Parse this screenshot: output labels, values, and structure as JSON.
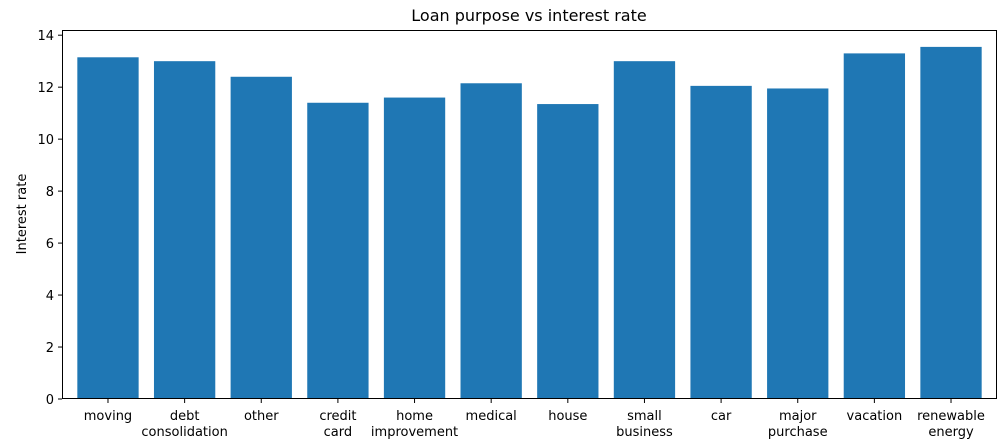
{
  "chart_data": {
    "type": "bar",
    "title": "Loan purpose vs interest rate",
    "xlabel": "",
    "ylabel": "Interest rate",
    "categories": [
      "moving",
      "debt\nconsolidation",
      "other",
      "credit\ncard",
      "home\nimprovement",
      "medical",
      "house",
      "small\nbusiness",
      "car",
      "major\npurchase",
      "vacation",
      "renewable\nenergy"
    ],
    "values": [
      13.15,
      13.0,
      12.4,
      11.4,
      11.6,
      12.15,
      11.35,
      13.0,
      12.05,
      11.95,
      13.3,
      13.55
    ],
    "ylim": [
      0,
      14.2
    ],
    "yticks": [
      0,
      2,
      4,
      6,
      8,
      10,
      12,
      14
    ],
    "bar_color": "#1f77b4",
    "grid": false
  }
}
